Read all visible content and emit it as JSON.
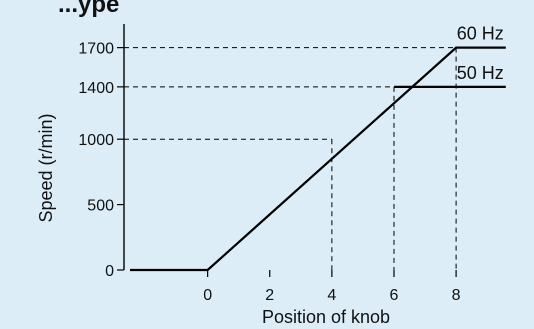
{
  "chart_data": {
    "type": "line",
    "title": "...ype",
    "xlabel": "Position of knob",
    "ylabel": "Speed (r/min)",
    "xlim": [
      -2.5,
      9.8
    ],
    "ylim": [
      0,
      1850
    ],
    "x_ticks": [
      0,
      2,
      4,
      6,
      8
    ],
    "y_ticks": [
      0,
      500,
      1000,
      1400,
      1700
    ],
    "grid": false,
    "series": [
      {
        "name": "60 Hz",
        "x": [
          -2.5,
          0,
          8,
          9.6
        ],
        "y": [
          0,
          0,
          1700,
          1700
        ]
      },
      {
        "name": "50 Hz",
        "x": [
          6,
          9.6
        ],
        "y": [
          1400,
          1400
        ]
      }
    ],
    "reference_lines": [
      {
        "x": 4,
        "y": 1000
      },
      {
        "x": 6,
        "y": 1400
      },
      {
        "x": 8,
        "y": 1700
      }
    ]
  }
}
